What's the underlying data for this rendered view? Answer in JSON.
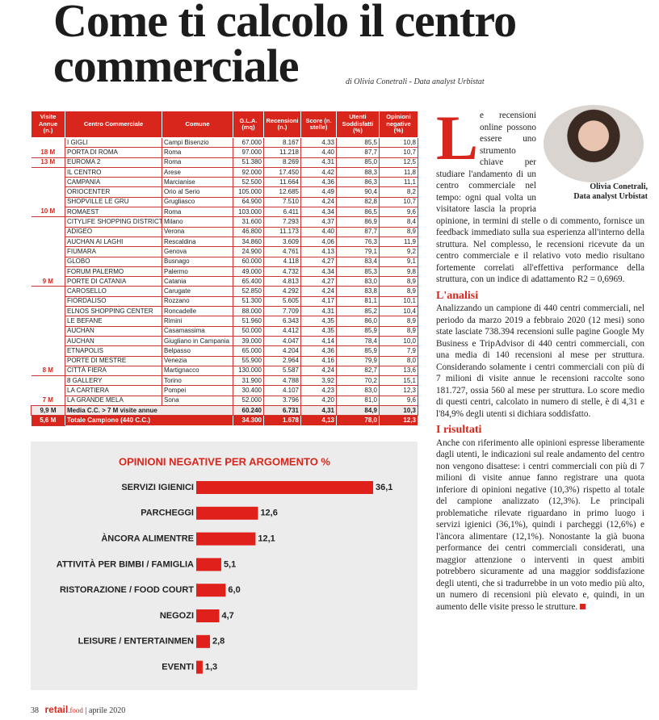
{
  "title": "Come ti calcolo il centro commerciale",
  "byline": "di Olivia Conetrali - Data analyst Urbistat",
  "table": {
    "header": [
      "Visite Annue (n.)",
      "Centro Commerciale",
      "Comune",
      "G.L.A. (mq)",
      "Recensioni (n.)",
      "Score (n. stelle)",
      "Utenti Soddisfatti (%)",
      "Opinioni negative (%)"
    ],
    "rows": [
      {
        "name": "I GIGLI",
        "comune": "Campi Bisenzio",
        "gla": "67.000",
        "recensioni": "8.167",
        "score": "4,33",
        "utenti": "85,5",
        "negativi": "10,8"
      },
      {
        "visite": "18 M",
        "name": "PORTA DI ROMA",
        "comune": "Roma",
        "gla": "97.000",
        "recensioni": "11.218",
        "score": "4,40",
        "utenti": "87,7",
        "negativi": "10,7"
      },
      {
        "visite": "13 M",
        "name": "EUROMA 2",
        "comune": "Roma",
        "gla": "51.380",
        "recensioni": "8.269",
        "score": "4,31",
        "utenti": "85,0",
        "negativi": "12,5"
      },
      {
        "name": "IL CENTRO",
        "comune": "Arese",
        "gla": "92.000",
        "recensioni": "17.450",
        "score": "4,42",
        "utenti": "88,3",
        "negativi": "11,8"
      },
      {
        "name": "CAMPANIA",
        "comune": "Marcianise",
        "gla": "52.500",
        "recensioni": "11.664",
        "score": "4,36",
        "utenti": "86,3",
        "negativi": "11,1"
      },
      {
        "name": "ORIOCENTER",
        "comune": "Orio al Serio",
        "gla": "105.000",
        "recensioni": "12.685",
        "score": "4,49",
        "utenti": "90,4",
        "negativi": "8,2"
      },
      {
        "name": "SHOPVILLE LE GRU",
        "comune": "Grugliasco",
        "gla": "64.900",
        "recensioni": "7.510",
        "score": "4,24",
        "utenti": "82,8",
        "negativi": "10,7"
      },
      {
        "visite": "10 M",
        "name": "ROMAEST",
        "comune": "Roma",
        "gla": "103.000",
        "recensioni": "6.411",
        "score": "4,34",
        "utenti": "86,5",
        "negativi": "9,6"
      },
      {
        "name": "CITYLIFE SHOPPING DISTRICT",
        "comune": "Milano",
        "gla": "31.600",
        "recensioni": "7.293",
        "score": "4,37",
        "utenti": "86,9",
        "negativi": "8,4"
      },
      {
        "name": "ADIGEO",
        "comune": "Verona",
        "gla": "46.800",
        "recensioni": "11.173",
        "score": "4,40",
        "utenti": "87,7",
        "negativi": "8,9"
      },
      {
        "name": "AUCHAN AI LAGHI",
        "comune": "Rescaldina",
        "gla": "34.860",
        "recensioni": "3.609",
        "score": "4,06",
        "utenti": "76,3",
        "negativi": "11,9"
      },
      {
        "name": "FIUMARA",
        "comune": "Genova",
        "gla": "24.900",
        "recensioni": "4.761",
        "score": "4,13",
        "utenti": "79,1",
        "negativi": "9,2"
      },
      {
        "name": "GLOBO",
        "comune": "Busnago",
        "gla": "60.000",
        "recensioni": "4.118",
        "score": "4,27",
        "utenti": "83,4",
        "negativi": "9,1"
      },
      {
        "name": "FORUM PALERMO",
        "comune": "Palermo",
        "gla": "49.000",
        "recensioni": "4.732",
        "score": "4,34",
        "utenti": "85,3",
        "negativi": "9,8"
      },
      {
        "visite": "9 M",
        "name": "PORTE DI CATANIA",
        "comune": "Catania",
        "gla": "65.400",
        "recensioni": "4.813",
        "score": "4,27",
        "utenti": "83,0",
        "negativi": "8,9"
      },
      {
        "name": "CAROSELLO",
        "comune": "Carugate",
        "gla": "52.850",
        "recensioni": "4.292",
        "score": "4,24",
        "utenti": "83,8",
        "negativi": "8,9"
      },
      {
        "name": "FIORDALISO",
        "comune": "Rozzano",
        "gla": "51.300",
        "recensioni": "5.605",
        "score": "4,17",
        "utenti": "81,1",
        "negativi": "10,1"
      },
      {
        "name": "ELNOS SHOPPING CENTER",
        "comune": "Roncadelle",
        "gla": "88.000",
        "recensioni": "7.709",
        "score": "4,31",
        "utenti": "85,2",
        "negativi": "10,4"
      },
      {
        "name": "LE BEFANE",
        "comune": "Rimini",
        "gla": "51.960",
        "recensioni": "6.343",
        "score": "4,35",
        "utenti": "86,0",
        "negativi": "8,9"
      },
      {
        "name": "AUCHAN",
        "comune": "Casamassima",
        "gla": "50.000",
        "recensioni": "4.412",
        "score": "4,35",
        "utenti": "85,9",
        "negativi": "8,9"
      },
      {
        "name": "AUCHAN",
        "comune": "Giugliano in Campania",
        "gla": "39.000",
        "recensioni": "4.047",
        "score": "4,14",
        "utenti": "78,4",
        "negativi": "10,0"
      },
      {
        "name": "ETNAPOLIS",
        "comune": "Belpasso",
        "gla": "65.000",
        "recensioni": "4.204",
        "score": "4,36",
        "utenti": "85,9",
        "negativi": "7,9"
      },
      {
        "name": "PORTE DI MESTRE",
        "comune": "Venezia",
        "gla": "55.900",
        "recensioni": "2.964",
        "score": "4,16",
        "utenti": "79,9",
        "negativi": "8,0"
      },
      {
        "visite": "8 M",
        "name": "CITTÀ FIERA",
        "comune": "Martignacco",
        "gla": "130.000",
        "recensioni": "5.587",
        "score": "4,24",
        "utenti": "82,7",
        "negativi": "13,6"
      },
      {
        "name": "8 GALLERY",
        "comune": "Torino",
        "gla": "31.900",
        "recensioni": "4.788",
        "score": "3,92",
        "utenti": "70,2",
        "negativi": "15,1"
      },
      {
        "name": "LA CARTIERA",
        "comune": "Pompei",
        "gla": "30.400",
        "recensioni": "4.107",
        "score": "4,23",
        "utenti": "83,0",
        "negativi": "12,3"
      },
      {
        "visite": "7 M",
        "name": "LA GRANDE MELA",
        "comune": "Sona",
        "gla": "52.000",
        "recensioni": "3.796",
        "score": "4,20",
        "utenti": "81,0",
        "negativi": "9,6"
      },
      {
        "visite": "9,9 M",
        "name": "Media C.C. > 7 M visite annue",
        "gla": "60.240",
        "recensioni": "6.731",
        "score": "4,31",
        "utenti": "84,9",
        "negativi": "10,3"
      },
      {
        "visite": "5,6 M",
        "name": "Totale Campione (440 C.C.)",
        "gla": "34.300",
        "recensioni": "1.678",
        "score": "4,13",
        "utenti": "78,0",
        "negativi": "12,3"
      }
    ]
  },
  "chart_data": {
    "type": "bar",
    "title": "OPINIONI NEGATIVE PER ARGOMENTO %",
    "categories": [
      "SERVIZI IGIENICI",
      "PARCHEGGI",
      "ÀNCORA ALIMENTRE",
      "ATTIVITÀ PER BIMBI / FAMIGLIA",
      "RISTORAZIONE / FOOD COURT",
      "NEGOZI",
      "LEISURE / ENTERTAINMEN",
      "EVENTI"
    ],
    "values": [
      36.1,
      12.6,
      12.1,
      5.1,
      6.0,
      4.7,
      2.8,
      1.3
    ],
    "value_labels": [
      "36,1",
      "12,6",
      "12,1",
      "5,1",
      "6,0",
      "4,7",
      "2,8",
      "1,3"
    ],
    "color": "#e0201b"
  },
  "photo_caption": [
    "Olivia Conetrali,",
    "Data analyst Urbistat"
  ],
  "article": {
    "drop_cap": "L",
    "intro": "e recensioni online possono essere uno strumento chiave per studiare l'andamento di un centro commerciale nel tempo: ogni qual volta un visitatore lascia la propria opinione, in termini di stelle o di commento, fornisce un feedback immediato sulla sua esperienza all'interno della struttura. Nel complesso, le recensioni ricevute da un centro commerciale e il relativo voto medio risultano fortemente correlati all'effettiva performance della struttura, con un indice di adattamento R2 = 0,6969.",
    "sections": [
      {
        "heading": "L'analisi",
        "text": "Analizzando un campione di 440 centri commerciali, nel periodo da marzo 2019 a febbraio 2020 (12 mesi) sono state lasciate 738.394 recensioni sulle pagine Google My Business e TripAdvisor di 440 centri commerciali, con una media di 140 recensioni al mese per struttura. Considerando solamente i centri commerciali con più di 7 milioni di visite annue le recensioni raccolte sono 181.727, ossia 560 al mese per struttura. Lo score medio di questi centri, calcolato in numero di stelle, è di 4,31 e l'84,9% degli utenti si dichiara soddisfatto."
      },
      {
        "heading": "I risultati",
        "text": "Anche con riferimento alle opinioni espresse liberamente dagli utenti, le indicazioni sul reale andamento del centro non vengono disattese: i centri commerciali con più di 7 milioni di visite annue fanno registrare una quota inferiore di opinioni negative (10,3%) rispetto al totale del campione analizzato (12,3%). Le principali problematiche rilevate riguardano in primo luogo i servizi igienici (36,1%), quindi i parcheggi (12,6%) e l'àncora alimentare (12,1%). Nonostante la già buona performance dei centri commerciali considerati, una maggior attenzione o interventi in quest ambiti potrebbero sicuramente ad una maggior soddisfazione degli utenti, che si tradurrebbe in un voto medio più alto, un numero di recensioni più elevato e, quindi, in un aumento delle visite presso le strutture."
      }
    ]
  },
  "footer": {
    "page": "38",
    "brand": "retail",
    "brand_sub": "food",
    "issue": "aprile 2020"
  }
}
